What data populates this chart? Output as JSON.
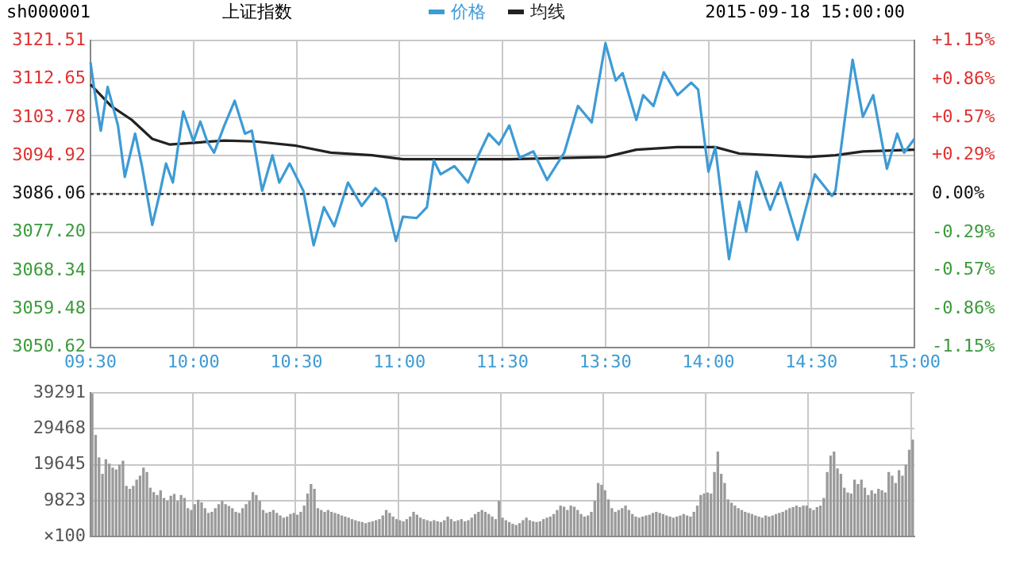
{
  "chart_data": [
    {
      "type": "line",
      "title": "上证指数",
      "annotations": [
        "sh000001",
        "2015-09-18 15:00:00"
      ],
      "legend": "top",
      "grid": true,
      "categories": [
        "09:30",
        null,
        null,
        null,
        null,
        null,
        null,
        null,
        null,
        null,
        null,
        null,
        null,
        null,
        null,
        null,
        null,
        null,
        null,
        null,
        null,
        null,
        null,
        null,
        null,
        null,
        null,
        null,
        null,
        null,
        "10:00",
        null,
        null,
        null,
        null,
        null,
        null,
        null,
        null,
        null,
        null,
        null,
        null,
        null,
        null,
        null,
        null,
        null,
        null,
        null,
        null,
        null,
        null,
        null,
        null,
        null,
        null,
        null,
        null,
        null,
        "10:30",
        null,
        null,
        null,
        null,
        null,
        null,
        null,
        null,
        null,
        null,
        null,
        null,
        null,
        null,
        null,
        null,
        null,
        null,
        null,
        null,
        null,
        null,
        null,
        null,
        null,
        null,
        null,
        null,
        null,
        "11:00",
        null,
        null,
        null,
        null,
        null,
        null,
        null,
        null,
        null,
        null,
        null,
        null,
        null,
        null,
        null,
        null,
        null,
        null,
        null,
        null,
        null,
        null,
        null,
        null,
        null,
        null,
        null,
        null,
        null,
        "11:30",
        null,
        null,
        null,
        null,
        null,
        null,
        null,
        null,
        null,
        null,
        null,
        null,
        null,
        null,
        null,
        null,
        null,
        null,
        null,
        null,
        null,
        null,
        null,
        null,
        null,
        null,
        null,
        null,
        null,
        "13:30",
        null,
        null,
        null,
        null,
        null,
        null,
        null,
        null,
        null,
        null,
        null,
        null,
        null,
        null,
        null,
        null,
        null,
        null,
        null,
        null,
        null,
        null,
        null,
        null,
        null,
        null,
        null,
        null,
        null,
        "14:00",
        null,
        null,
        null,
        null,
        null,
        null,
        null,
        null,
        null,
        null,
        null,
        null,
        null,
        null,
        null,
        null,
        null,
        null,
        null,
        null,
        null,
        null,
        null,
        null,
        null,
        null,
        null,
        null,
        null,
        "14:30",
        null,
        null,
        null,
        null,
        null,
        null,
        null,
        null,
        null,
        null,
        null,
        null,
        null,
        null,
        null,
        null,
        null,
        null,
        null,
        null,
        null,
        null,
        null,
        null,
        null,
        null,
        null,
        null,
        null,
        "15:00"
      ],
      "ylim": [
        3050.62,
        3121.51
      ],
      "yticks": [
        3050.62,
        3059.48,
        3068.34,
        {
          "value": 3077.2,
          "label": "3077.20"
        },
        3086.06,
        3094.92,
        3103.78,
        3112.65,
        3121.51
      ],
      "y2lim": [
        -1.15,
        1.15
      ],
      "y2ticks": [
        {
          "value": -1.15,
          "label": "-1.15%"
        },
        {
          "value": -0.86,
          "label": "-0.86%"
        },
        {
          "value": -0.57,
          "label": "-0.57%"
        },
        {
          "value": -0.29,
          "label": "-0.29%"
        },
        {
          "value": 0,
          "label": "0.00%"
        },
        {
          "value": 0.29,
          "label": "+0.29%"
        },
        {
          "value": 0.57,
          "label": "+0.57%"
        },
        {
          "value": 0.86,
          "label": "+0.86%"
        },
        {
          "value": 1.15,
          "label": "+1.15%"
        }
      ],
      "ref_lines": [
        {
          "axis": "y",
          "value": 3086.06,
          "color": "#333333",
          "line_style": "dotted"
        }
      ],
      "series": [
        {
          "name": "价格",
          "color": "#3d9bd5",
          "values": [
            3116.5,
            3110.8,
            null,
            3100.7,
            null,
            3110.8,
            null,
            null,
            3101.9,
            null,
            3090,
            null,
            null,
            3100,
            null,
            3092.5,
            null,
            null,
            3078.9,
            null,
            3085.6,
            null,
            3093.1,
            null,
            3088.7,
            null,
            null,
            3105.1,
            null,
            null,
            3098.2,
            null,
            3102.8,
            null,
            3098.2,
            null,
            3095.6,
            null,
            null,
            3101.9,
            null,
            null,
            3107.6,
            null,
            null,
            3100,
            null,
            3100.7,
            null,
            null,
            3086.8,
            null,
            null,
            3095,
            null,
            3088.7,
            null,
            null,
            3093.1,
            null,
            null,
            null,
            3086.8,
            null,
            null,
            3074.2,
            null,
            null,
            3083,
            null,
            null,
            3078.6,
            null,
            null,
            null,
            3088.7,
            null,
            null,
            null,
            3083.3,
            null,
            null,
            null,
            3087.4,
            null,
            null,
            3084.9,
            null,
            null,
            3075.2,
            null,
            3080.8,
            null,
            null,
            null,
            3080.5,
            null,
            null,
            3083,
            null,
            3093.8,
            null,
            3090.6,
            null,
            null,
            null,
            3092.5,
            null,
            null,
            null,
            3088.7,
            null,
            null,
            3095,
            null,
            null,
            3100,
            null,
            null,
            3097.5,
            null,
            null,
            3101.9,
            null,
            null,
            3094.4,
            null,
            null,
            null,
            3095.9,
            null,
            null,
            null,
            3089.3,
            null,
            null,
            null,
            null,
            3095.6,
            null,
            null,
            null,
            3106.4,
            null,
            null,
            null,
            3102.6,
            null,
            null,
            null,
            3120.9,
            null,
            null,
            3112.3,
            null,
            3114,
            null,
            null,
            null,
            3103.2,
            null,
            3108.9,
            null,
            null,
            3106.4,
            null,
            null,
            3114.2,
            null,
            null,
            null,
            3108.9,
            null,
            null,
            null,
            3111.8,
            null,
            3110.2,
            null,
            null,
            3091.2,
            null,
            3096.9,
            null,
            null,
            null,
            3071,
            null,
            null,
            3084.3,
            null,
            3077.4,
            null,
            null,
            3091.2,
            null,
            null,
            null,
            3082.4,
            null,
            null,
            3088.7,
            null,
            null,
            null,
            null,
            3075.5,
            null,
            null,
            null,
            null,
            3090.6,
            null,
            null,
            null,
            null,
            3085.6,
            3086.8,
            null,
            null,
            null,
            null,
            3117.1,
            null,
            null,
            3103.9,
            null,
            null,
            3108.9,
            null,
            null,
            null,
            3091.9,
            null,
            null,
            3100,
            null,
            3095.6,
            null,
            null,
            3098.8
          ]
        },
        {
          "name": "均线",
          "color": "#222222",
          "values": [
            3111.4,
            null,
            null,
            null,
            null,
            null,
            3106.4,
            null,
            null,
            null,
            null,
            null,
            3103.2,
            null,
            null,
            null,
            null,
            null,
            3098.8,
            null,
            null,
            null,
            null,
            3097.5,
            null,
            null,
            null,
            null,
            null,
            null,
            null,
            null,
            null,
            null,
            null,
            null,
            null,
            null,
            null,
            3098.4,
            null,
            null,
            null,
            null,
            null,
            null,
            null,
            null,
            3098.2,
            null,
            null,
            null,
            null,
            null,
            null,
            null,
            null,
            null,
            null,
            null,
            3097.2,
            null,
            null,
            null,
            null,
            null,
            null,
            null,
            null,
            null,
            3095.6,
            null,
            null,
            null,
            null,
            null,
            null,
            null,
            null,
            null,
            null,
            null,
            3095,
            null,
            null,
            null,
            null,
            null,
            null,
            null,
            null,
            3094.1,
            null,
            null,
            null,
            null,
            null,
            null,
            null,
            null,
            null,
            null,
            null,
            null,
            null,
            null,
            null,
            null,
            null,
            null,
            null,
            null,
            null,
            null,
            null,
            null,
            null,
            null,
            null,
            null,
            null,
            null,
            3094.1,
            null,
            null,
            null,
            null,
            null,
            null,
            null,
            null,
            null,
            null,
            null,
            null,
            null,
            null,
            null,
            null,
            null,
            null,
            null,
            null,
            null,
            null,
            null,
            null,
            null,
            null,
            null,
            3094.6,
            null,
            null,
            null,
            null,
            null,
            null,
            null,
            null,
            3096.3,
            null,
            null,
            null,
            null,
            null,
            null,
            null,
            null,
            null,
            null,
            null,
            3096.9,
            null,
            null,
            null,
            null,
            null,
            null,
            null,
            null,
            null,
            null,
            3096.9,
            null,
            null,
            null,
            null,
            null,
            null,
            3095.4,
            null,
            null,
            null,
            null,
            null,
            null,
            null,
            null,
            null,
            null,
            null,
            null,
            null,
            null,
            null,
            null,
            null,
            null,
            null,
            3094.6,
            null,
            null,
            null,
            null,
            null,
            null,
            null,
            3095,
            null,
            null,
            null,
            null,
            null,
            null,
            null,
            3095.9,
            null,
            null,
            null,
            null,
            null,
            null,
            null,
            null,
            null,
            null,
            null,
            null,
            null,
            null,
            3096.3
          ]
        }
      ]
    },
    {
      "type": "bar",
      "grid": true,
      "tick_labels": "y",
      "color": "#9a9a9a",
      "ylabel": "×100",
      "categories": [
        null,
        null,
        null,
        null,
        null,
        null,
        null,
        null,
        null,
        null,
        null,
        null,
        null,
        null,
        null,
        null,
        null,
        null,
        null,
        null,
        null,
        null,
        null,
        null,
        null,
        null,
        null,
        null,
        null,
        null,
        null,
        null,
        null,
        null,
        null,
        null,
        null,
        null,
        null,
        null,
        null,
        null,
        null,
        null,
        null,
        null,
        null,
        null,
        null,
        null,
        null,
        null,
        null,
        null,
        null,
        null,
        null,
        null,
        null,
        null,
        null,
        null,
        null,
        null,
        null,
        null,
        null,
        null,
        null,
        null,
        null,
        null,
        null,
        null,
        null,
        null,
        null,
        null,
        null,
        null,
        null,
        null,
        null,
        null,
        null,
        null,
        null,
        null,
        null,
        null,
        null,
        null,
        null,
        null,
        null,
        null,
        null,
        null,
        null,
        null,
        null,
        null,
        null,
        null,
        null,
        null,
        null,
        null,
        null,
        null,
        null,
        null,
        null,
        null,
        null,
        null,
        null,
        null,
        null,
        null,
        null,
        null,
        null,
        null,
        null,
        null,
        null,
        null,
        null,
        null,
        null,
        null,
        null,
        null,
        null,
        null,
        null,
        null,
        null,
        null,
        null,
        null,
        null,
        null,
        null,
        null,
        null,
        null,
        null,
        null,
        null,
        null,
        null,
        null,
        null,
        null,
        null,
        null,
        null,
        null,
        null,
        null,
        null,
        null,
        null,
        null,
        null,
        null,
        null,
        null,
        null,
        null,
        null,
        null,
        null,
        null,
        null,
        null,
        null,
        null,
        null,
        null,
        null,
        null,
        null,
        null,
        null,
        null,
        null,
        null,
        null,
        null,
        null,
        null,
        null,
        null,
        null,
        null,
        null,
        null,
        null,
        null,
        null,
        null,
        null,
        null,
        null,
        null,
        null,
        null,
        null,
        null,
        null,
        null,
        null,
        null,
        null,
        null,
        null,
        null,
        null,
        null,
        null,
        null,
        null,
        null,
        null,
        null,
        null,
        null,
        null,
        null,
        null,
        null,
        null,
        null,
        null,
        null,
        null,
        null,
        null
      ],
      "ylim": [
        0,
        39291
      ],
      "yticks": [
        {
          "value": 0,
          "label": null
        },
        9823,
        19645,
        29468,
        39291
      ],
      "values": [
        39000,
        27700,
        21500,
        17000,
        21000,
        19800,
        18700,
        18200,
        19500,
        20600,
        13700,
        12900,
        13700,
        15400,
        16500,
        18700,
        17500,
        13200,
        12000,
        11200,
        12500,
        10400,
        9600,
        11000,
        11500,
        9600,
        11200,
        10400,
        7600,
        7100,
        8700,
        9900,
        9200,
        7600,
        6300,
        6600,
        7600,
        8700,
        9600,
        8700,
        8200,
        7600,
        6600,
        6300,
        7600,
        8700,
        9600,
        12000,
        11200,
        9600,
        7100,
        6300,
        6600,
        7100,
        6300,
        5600,
        5000,
        5300,
        6000,
        6300,
        5800,
        6600,
        8300,
        11600,
        14200,
        12900,
        7600,
        7100,
        6600,
        7100,
        6600,
        6300,
        6000,
        5600,
        5300,
        5000,
        4600,
        4300,
        4000,
        3800,
        3500,
        3800,
        4000,
        4300,
        4600,
        5600,
        7100,
        6300,
        5300,
        4600,
        4300,
        4000,
        4600,
        5300,
        6600,
        5800,
        5000,
        4600,
        4300,
        4000,
        4300,
        4000,
        3800,
        4300,
        5300,
        4600,
        4000,
        4300,
        4600,
        4000,
        4300,
        5000,
        6000,
        6600,
        7100,
        6600,
        6000,
        5300,
        4600,
        9600,
        5000,
        4300,
        3800,
        3300,
        3000,
        3500,
        4300,
        5000,
        4300,
        4000,
        3800,
        4000,
        4600,
        5000,
        5300,
        6000,
        7100,
        8300,
        8000,
        7100,
        8300,
        8000,
        7100,
        6000,
        5300,
        5600,
        6600,
        9600,
        14500,
        14000,
        12500,
        10000,
        7600,
        6600,
        7100,
        7600,
        8300,
        7100,
        6000,
        5300,
        5000,
        5300,
        5600,
        5800,
        6300,
        6600,
        6300,
        6000,
        5600,
        5300,
        5000,
        5300,
        5600,
        6000,
        5600,
        5300,
        6600,
        8300,
        11200,
        11600,
        11900,
        11600,
        17500,
        23100,
        17000,
        14500,
        10000,
        9100,
        8300,
        7600,
        7100,
        6600,
        6300,
        6000,
        5600,
        5300,
        5000,
        5600,
        5300,
        5600,
        6000,
        6300,
        6600,
        7100,
        7600,
        7900,
        8300,
        7900,
        8300,
        8300,
        7600,
        7100,
        7900,
        8300,
        10400,
        17500,
        22000,
        23100,
        18500,
        17000,
        13200,
        11900,
        11600,
        15400,
        14200,
        15400,
        13200,
        11200,
        12500,
        11600,
        12900,
        12500,
        11900,
        17500,
        16500,
        14500,
        18000,
        16500,
        19500,
        23600,
        26400
      ]
    }
  ]
}
